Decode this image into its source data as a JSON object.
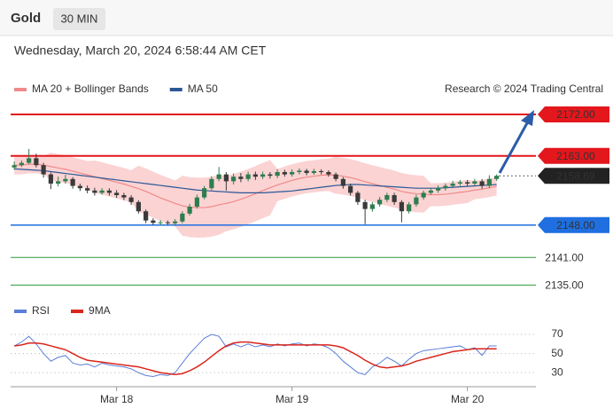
{
  "header": {
    "symbol": "Gold",
    "interval": "30 MIN",
    "datetime": "Wednesday, March 20, 2024 6:58:44 AM CET"
  },
  "chart_data": [
    {
      "type": "candlestick",
      "attribution": "Research © 2024 Trading Central",
      "categories": [
        null,
        null,
        null,
        null,
        null,
        null,
        null,
        null,
        null,
        null,
        null,
        null,
        null,
        null,
        "Mar 18",
        null,
        null,
        null,
        null,
        null,
        null,
        null,
        null,
        null,
        null,
        null,
        null,
        null,
        null,
        null,
        null,
        null,
        null,
        null,
        null,
        null,
        null,
        null,
        "Mar 19",
        null,
        null,
        null,
        null,
        null,
        null,
        null,
        null,
        null,
        null,
        null,
        null,
        null,
        null,
        null,
        null,
        null,
        null,
        null,
        null,
        null,
        null,
        null,
        "Mar 20",
        null,
        null,
        null,
        null
      ],
      "open": [
        2160.5,
        2161,
        2161.5,
        2162.5,
        2161,
        2159,
        2157,
        2157.5,
        2158,
        2156.5,
        2156,
        2155.5,
        2155,
        2155.5,
        2155,
        2154.5,
        2154,
        2153,
        2151,
        2149,
        2148.5,
        2148.6,
        2148.4,
        2148.8,
        2150.5,
        2152,
        2154,
        2156,
        2158,
        2159,
        2157.5,
        2158.5,
        2158,
        2159,
        2158.5,
        2159,
        2158.7,
        2159.5,
        2159,
        2159.5,
        2159.8,
        2159.3,
        2159.7,
        2159.5,
        2159,
        2158,
        2156.5,
        2155,
        2153,
        2151.5,
        2152.5,
        2153.5,
        2154.5,
        2153,
        2151,
        2152.5,
        2154,
        2155,
        2155.5,
        2156,
        2156.5,
        2157,
        2157.3,
        2157,
        2157.5,
        2156.5,
        2158
      ],
      "high": [
        2161.8,
        2162,
        2164.5,
        2163.5,
        2161.5,
        2159.4,
        2158.5,
        2158.9,
        2158.4,
        2157,
        2156.6,
        2156.1,
        2156,
        2156,
        2155.6,
        2155,
        2154.5,
        2153.4,
        2151.4,
        2149.5,
        2149.1,
        2149,
        2149.3,
        2151,
        2152.6,
        2154.6,
        2156.5,
        2158.6,
        2160.6,
        2159.5,
        2159.2,
        2159.3,
        2159.6,
        2159.6,
        2159.6,
        2159.5,
        2160.1,
        2160,
        2160.1,
        2160.3,
        2160.2,
        2160.2,
        2160.1,
        2159.9,
        2159.4,
        2158.4,
        2157,
        2155.4,
        2153.5,
        2153,
        2154.1,
        2155,
        2155,
        2153.4,
        2153,
        2154.6,
        2155.5,
        2156,
        2156.6,
        2157,
        2157.6,
        2157.8,
        2157.8,
        2158,
        2158,
        2158.8,
        2159
      ],
      "low": [
        2160,
        2160.6,
        2161.2,
        2160.5,
        2158.3,
        2155.8,
        2156.4,
        2157,
        2155.9,
        2155.4,
        2154.9,
        2154.4,
        2154.6,
        2154.4,
        2153.9,
        2153.4,
        2152.4,
        2150.5,
        2148.4,
        2148,
        2148,
        2147.9,
        2148,
        2148.4,
        2150.1,
        2151.6,
        2153.6,
        2155.6,
        2157.5,
        2155.5,
        2156.8,
        2157.3,
        2157.5,
        2157.8,
        2158,
        2158.1,
        2158.2,
        2158.5,
        2158.5,
        2159,
        2158.8,
        2158.9,
        2159,
        2158.5,
        2157.5,
        2155.9,
        2154.4,
        2152.4,
        2148.2,
        2150.9,
        2152,
        2153,
        2152.4,
        2148.6,
        2150.5,
        2152,
        2153.5,
        2154.6,
        2155,
        2155.5,
        2156,
        2156.5,
        2156.5,
        2156.5,
        2155.9,
        2156,
        2157.6
      ],
      "close": [
        2161,
        2161.5,
        2162.5,
        2161,
        2159,
        2157,
        2157.5,
        2158,
        2156.5,
        2156,
        2155.5,
        2155,
        2155.5,
        2155,
        2154.5,
        2154,
        2153,
        2151,
        2149,
        2148.5,
        2148.6,
        2148.4,
        2148.8,
        2150.5,
        2152,
        2154,
        2156,
        2158,
        2159,
        2157.5,
        2158.5,
        2158,
        2159,
        2158.5,
        2159,
        2158.7,
        2159.5,
        2159,
        2159.5,
        2159.8,
        2159.3,
        2159.7,
        2159.5,
        2159,
        2158,
        2156.5,
        2155,
        2153,
        2151.5,
        2152.5,
        2153.5,
        2154.5,
        2153,
        2151,
        2152.5,
        2154,
        2155,
        2155.5,
        2156,
        2156.5,
        2157,
        2157.3,
        2157,
        2157.5,
        2156.5,
        2158,
        2158.69
      ],
      "up_color": "#2e7d4f",
      "down_color": "#3a3a3a",
      "series": [
        {
          "name": "MA 20 + Bollinger Bands",
          "color": "#f08a8a",
          "band_color": "#fbd3d3",
          "values": [
            2161,
            2161,
            2161.2,
            2161.2,
            2161,
            2160.7,
            2160.4,
            2160.1,
            2159.7,
            2159.3,
            2158.9,
            2158.5,
            2158.1,
            2157.7,
            2157.3,
            2156.9,
            2156.4,
            2155.9,
            2155.3,
            2154.6,
            2153.9,
            2153.3,
            2152.7,
            2152.2,
            2151.9,
            2151.8,
            2151.8,
            2152,
            2152.4,
            2152.7,
            2153.1,
            2153.6,
            2154.2,
            2154.8,
            2155.5,
            2156.1,
            2156.7,
            2157.2,
            2157.7,
            2158.1,
            2158.4,
            2158.6,
            2158.8,
            2158.9,
            2158.8,
            2158.6,
            2158.3,
            2157.9,
            2157.4,
            2157,
            2156.6,
            2156.2,
            2155.8,
            2155.3,
            2155,
            2154.8,
            2154.7,
            2154.6,
            2154.6,
            2154.7,
            2154.9,
            2155.1,
            2155.3,
            2155.6,
            2155.8,
            2156.1,
            2156.4
          ],
          "upper": [
            2163,
            2163,
            2163.2,
            2163.2,
            2163,
            2163.7,
            2163.4,
            2163.1,
            2162.7,
            2162.3,
            2161.9,
            2162,
            2161.6,
            2161.2,
            2160.8,
            2160.4,
            2159.9,
            2160.9,
            2160.3,
            2159.6,
            2158.9,
            2158.3,
            2157.7,
            2158.7,
            2158.4,
            2158.3,
            2158.3,
            2158.5,
            2158.9,
            2158.7,
            2159.1,
            2159.6,
            2160.2,
            2160.8,
            2161.5,
            2162.1,
            2160.2,
            2160.7,
            2161.2,
            2161.6,
            2161.9,
            2162.1,
            2162.3,
            2162.4,
            2162.8,
            2162.6,
            2162.3,
            2161.9,
            2161.4,
            2161,
            2160.6,
            2160.2,
            2159.8,
            2159.3,
            2159,
            2158.8,
            2158.7,
            2157.1,
            2157.1,
            2157.2,
            2157.4,
            2157.6,
            2157.8,
            2157.6,
            2157.8,
            2158.1,
            2158.4
          ],
          "lower": [
            2159,
            2159,
            2159.2,
            2159.2,
            2159,
            2157.7,
            2157.4,
            2157.1,
            2156.7,
            2156.3,
            2155.9,
            2155,
            2154.6,
            2154.2,
            2153.8,
            2153.4,
            2152.9,
            2150.9,
            2150.3,
            2149.6,
            2148.9,
            2148.3,
            2147.7,
            2145.7,
            2145.4,
            2145.3,
            2145.3,
            2145.5,
            2145.9,
            2146.7,
            2147.1,
            2147.6,
            2148.2,
            2148.8,
            2149.5,
            2150.1,
            2153.2,
            2153.7,
            2154.2,
            2154.6,
            2154.9,
            2155.1,
            2155.3,
            2155.4,
            2154.8,
            2154.6,
            2154.3,
            2153.9,
            2153.4,
            2153,
            2152.6,
            2152.2,
            2151.8,
            2151.3,
            2151,
            2150.8,
            2150.7,
            2152.1,
            2152.1,
            2152.2,
            2152.4,
            2152.6,
            2152.8,
            2153.6,
            2153.8,
            2154.1,
            2154.4
          ]
        },
        {
          "name": "MA 50",
          "color": "#2b5797",
          "values": [
            2160.2,
            2160.1,
            2160,
            2159.9,
            2159.8,
            2159.6,
            2159.4,
            2159.2,
            2159,
            2158.8,
            2158.6,
            2158.4,
            2158.2,
            2158,
            2157.8,
            2157.6,
            2157.4,
            2157.2,
            2157,
            2156.8,
            2156.6,
            2156.4,
            2156.2,
            2156,
            2155.8,
            2155.6,
            2155.5,
            2155.4,
            2155.3,
            2155.2,
            2155.1,
            2155,
            2155,
            2155,
            2155,
            2155.1,
            2155.2,
            2155.3,
            2155.4,
            2155.6,
            2155.8,
            2156,
            2156.2,
            2156.4,
            2156.6,
            2156.7,
            2156.8,
            2156.8,
            2156.7,
            2156.6,
            2156.5,
            2156.4,
            2156.3,
            2156.2,
            2156.1,
            2156,
            2156,
            2156,
            2156,
            2156.1,
            2156.2,
            2156.3,
            2156.4,
            2156.5,
            2156.6,
            2156.7,
            2156.8
          ]
        }
      ],
      "levels": [
        {
          "value": 2172,
          "label": "2172.00",
          "color": "#e3171c",
          "style": "box"
        },
        {
          "value": 2163,
          "label": "2163.00",
          "color": "#e3171c",
          "style": "box"
        },
        {
          "value": 2148,
          "label": "2148.00",
          "color": "#1f6fe0",
          "style": "box"
        },
        {
          "value": 2141,
          "label": "2141.00",
          "color": "#2f9a3a",
          "style": "text"
        },
        {
          "value": 2135,
          "label": "2135.00",
          "color": "#2f9a3a",
          "style": "text"
        }
      ],
      "current_price": 2158.69,
      "ylim": [
        2132.2,
        2174.3
      ]
    },
    {
      "type": "line",
      "series": [
        {
          "name": "RSI",
          "color": "#5b7fd6",
          "values": [
            58,
            62,
            68,
            60,
            50,
            42,
            46,
            48,
            40,
            38,
            39,
            36,
            40,
            38,
            37,
            36,
            34,
            30,
            27,
            26,
            28,
            27,
            30,
            40,
            50,
            58,
            66,
            70,
            68,
            57,
            60,
            57,
            60,
            57,
            59,
            57,
            60,
            58,
            60,
            61,
            58,
            60,
            59,
            56,
            50,
            42,
            36,
            30,
            28,
            36,
            40,
            46,
            42,
            37,
            44,
            50,
            53,
            54,
            55,
            56,
            57,
            58,
            54,
            56,
            48,
            58,
            58
          ]
        },
        {
          "name": "9MA",
          "color": "#d9261c",
          "values": [
            58,
            59,
            61,
            61,
            60,
            58,
            56,
            54,
            50,
            46,
            43,
            42,
            41,
            40,
            39,
            38,
            37,
            36,
            34,
            32,
            30,
            29,
            28,
            29,
            32,
            36,
            41,
            47,
            53,
            58,
            61,
            62,
            62,
            61,
            60,
            59,
            59,
            59,
            59,
            59,
            59,
            59,
            59,
            59,
            58,
            56,
            52,
            48,
            43,
            39,
            36,
            35,
            36,
            37,
            39,
            42,
            44,
            46,
            48,
            50,
            52,
            53,
            54,
            55,
            55,
            55,
            55
          ]
        }
      ],
      "ylim": [
        19,
        83
      ],
      "yticks": [
        30,
        50,
        70
      ],
      "grid": true
    }
  ]
}
